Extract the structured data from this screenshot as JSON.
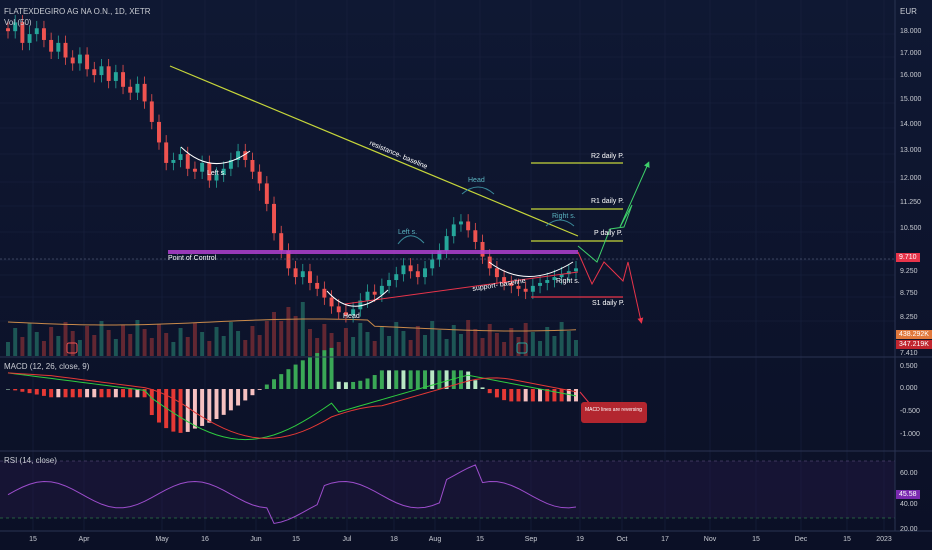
{
  "header": {
    "symbol": "FLATEXDEGIRO AG NA O.N., 1D, XETR",
    "volume_label": "Vol (50)",
    "currency": "EUR"
  },
  "colors": {
    "background": "#0c1229",
    "up_candle": "#26a69a",
    "down_candle": "#ef5350",
    "resistance_line": "#c6d63a",
    "support_line": "#e8344a",
    "pivot_line": "#c6d63a",
    "poc_line": "#e040fb",
    "macd_line": "#2ecc40",
    "signal_line": "#e53935",
    "rsi_line": "#9c4dcc",
    "arrow_up": "#3ecf6a",
    "arrow_down": "#e8344a"
  },
  "chart_data": [
    {
      "type": "candlestick",
      "x_ticks": [
        "15",
        "Apr",
        "May",
        "16",
        "Jun",
        "15",
        "Jul",
        "18",
        "Aug",
        "15",
        "Sep",
        "19",
        "Oct",
        "17",
        "Nov",
        "15",
        "Dec",
        "15",
        "2023"
      ],
      "y_ticks": [
        "18.000",
        "17.000",
        "16.000",
        "15.000",
        "14.000",
        "13.000",
        "12.000",
        "11.250",
        "10.500",
        "9.750",
        "9.250",
        "8.750",
        "8.250",
        "7.410"
      ],
      "ylim": [
        7.41,
        18.75
      ],
      "close_series": [
        18.3,
        18.6,
        17.9,
        18.2,
        18.4,
        18.0,
        17.6,
        17.9,
        17.4,
        17.2,
        17.5,
        17.0,
        16.8,
        17.1,
        16.6,
        16.9,
        16.4,
        16.2,
        16.5,
        15.9,
        15.2,
        14.5,
        13.8,
        13.9,
        14.1,
        13.6,
        13.5,
        13.8,
        13.2,
        13.4,
        13.6,
        13.9,
        14.2,
        13.9,
        13.5,
        13.1,
        12.4,
        11.4,
        10.8,
        10.2,
        9.9,
        10.1,
        9.7,
        9.5,
        9.2,
        8.9,
        8.7,
        8.6,
        8.8,
        9.1,
        9.4,
        9.3,
        9.6,
        9.8,
        10.0,
        10.3,
        10.1,
        9.9,
        10.2,
        10.5,
        10.8,
        11.3,
        11.7,
        11.8,
        11.5,
        11.1,
        10.6,
        10.2,
        9.9,
        9.7,
        9.6,
        9.5,
        9.4,
        9.6,
        9.7,
        9.8,
        9.9,
        10.0,
        10.1,
        10.2
      ],
      "last_price": "9.710",
      "annotations": [
        "resistance- baseline",
        "Head",
        "Left s.",
        "Right s.",
        "Point of Control",
        "support- baseline",
        "Head",
        "Left s.",
        "Right s.",
        "R2 daily P.",
        "R1 daily P.",
        "P daily P.",
        "S1 daily P."
      ],
      "levels": {
        "R2": 12.45,
        "R1": 11.2,
        "P": 10.1,
        "S1": 8.7,
        "point_of_control": 9.93
      }
    },
    {
      "type": "bar",
      "name": "Volume",
      "badges": [
        "438.292K",
        "347.219K"
      ]
    },
    {
      "type": "macd",
      "title": "MACD (12, 26, close, 9)",
      "y_ticks": [
        "0.500",
        "0.000",
        "-0.500",
        "-1.000"
      ],
      "ylim": [
        -1.15,
        0.65
      ],
      "annotation": "MACD lines are reversing"
    },
    {
      "type": "line",
      "title": "RSI (14, close)",
      "y_ticks": [
        "60.00",
        "40.00",
        "20.00"
      ],
      "ylim": [
        18,
        80
      ],
      "last_value": "45.58"
    }
  ]
}
